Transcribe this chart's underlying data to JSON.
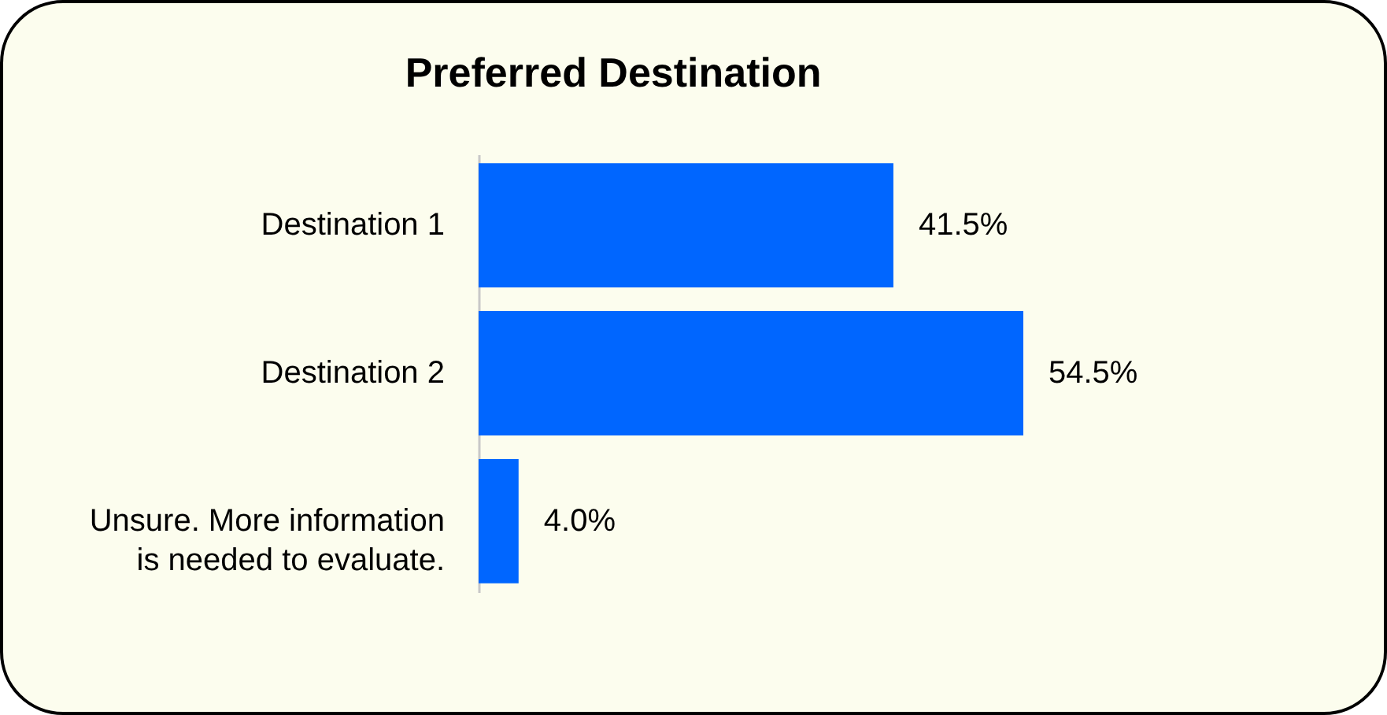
{
  "chart_data": {
    "type": "bar",
    "orientation": "horizontal",
    "title": "Preferred Destination",
    "categories": [
      "Destination 1",
      "Destination 2",
      "Unsure. More information is needed to evaluate."
    ],
    "values": [
      41.5,
      54.5,
      4.0
    ],
    "value_labels": [
      "41.5%",
      "54.5%",
      "4.0%"
    ],
    "color": "#0066ff"
  }
}
